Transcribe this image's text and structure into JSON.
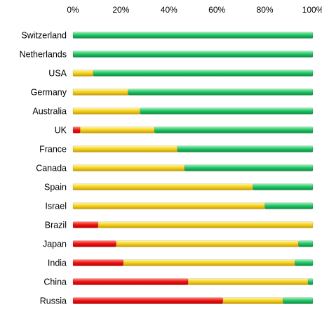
{
  "chart_data": {
    "type": "bar",
    "orientation": "horizontal",
    "stacked": true,
    "title": "",
    "xlabel": "",
    "ylabel": "",
    "xlim": [
      0,
      100
    ],
    "xticks": [
      "0%",
      "20%",
      "40%",
      "60%",
      "80%",
      "100%"
    ],
    "x_axis_position": "top",
    "grid": false,
    "legend": "none",
    "categories": [
      "Switzerland",
      "Netherlands",
      "USA",
      "Germany",
      "Australia",
      "UK",
      "France",
      "Canada",
      "Spain",
      "Israel",
      "Brazil",
      "Japan",
      "India",
      "China",
      "Russia"
    ],
    "series": [
      {
        "color": "#ee1111",
        "values": [
          0,
          0,
          0,
          0,
          0,
          3,
          0,
          0,
          0,
          0,
          10.5,
          18,
          21,
          48,
          62.5
        ]
      },
      {
        "color": "#f5d21e",
        "values": [
          0,
          0,
          8.5,
          23,
          28,
          31,
          43.5,
          46.5,
          75,
          80,
          89.5,
          76,
          71.5,
          50,
          25
        ]
      },
      {
        "color": "#1fc465",
        "values": [
          100,
          100,
          91.5,
          77,
          72,
          66,
          56.5,
          53.5,
          25,
          20,
          0,
          6,
          7.5,
          2,
          12.5
        ]
      }
    ]
  }
}
